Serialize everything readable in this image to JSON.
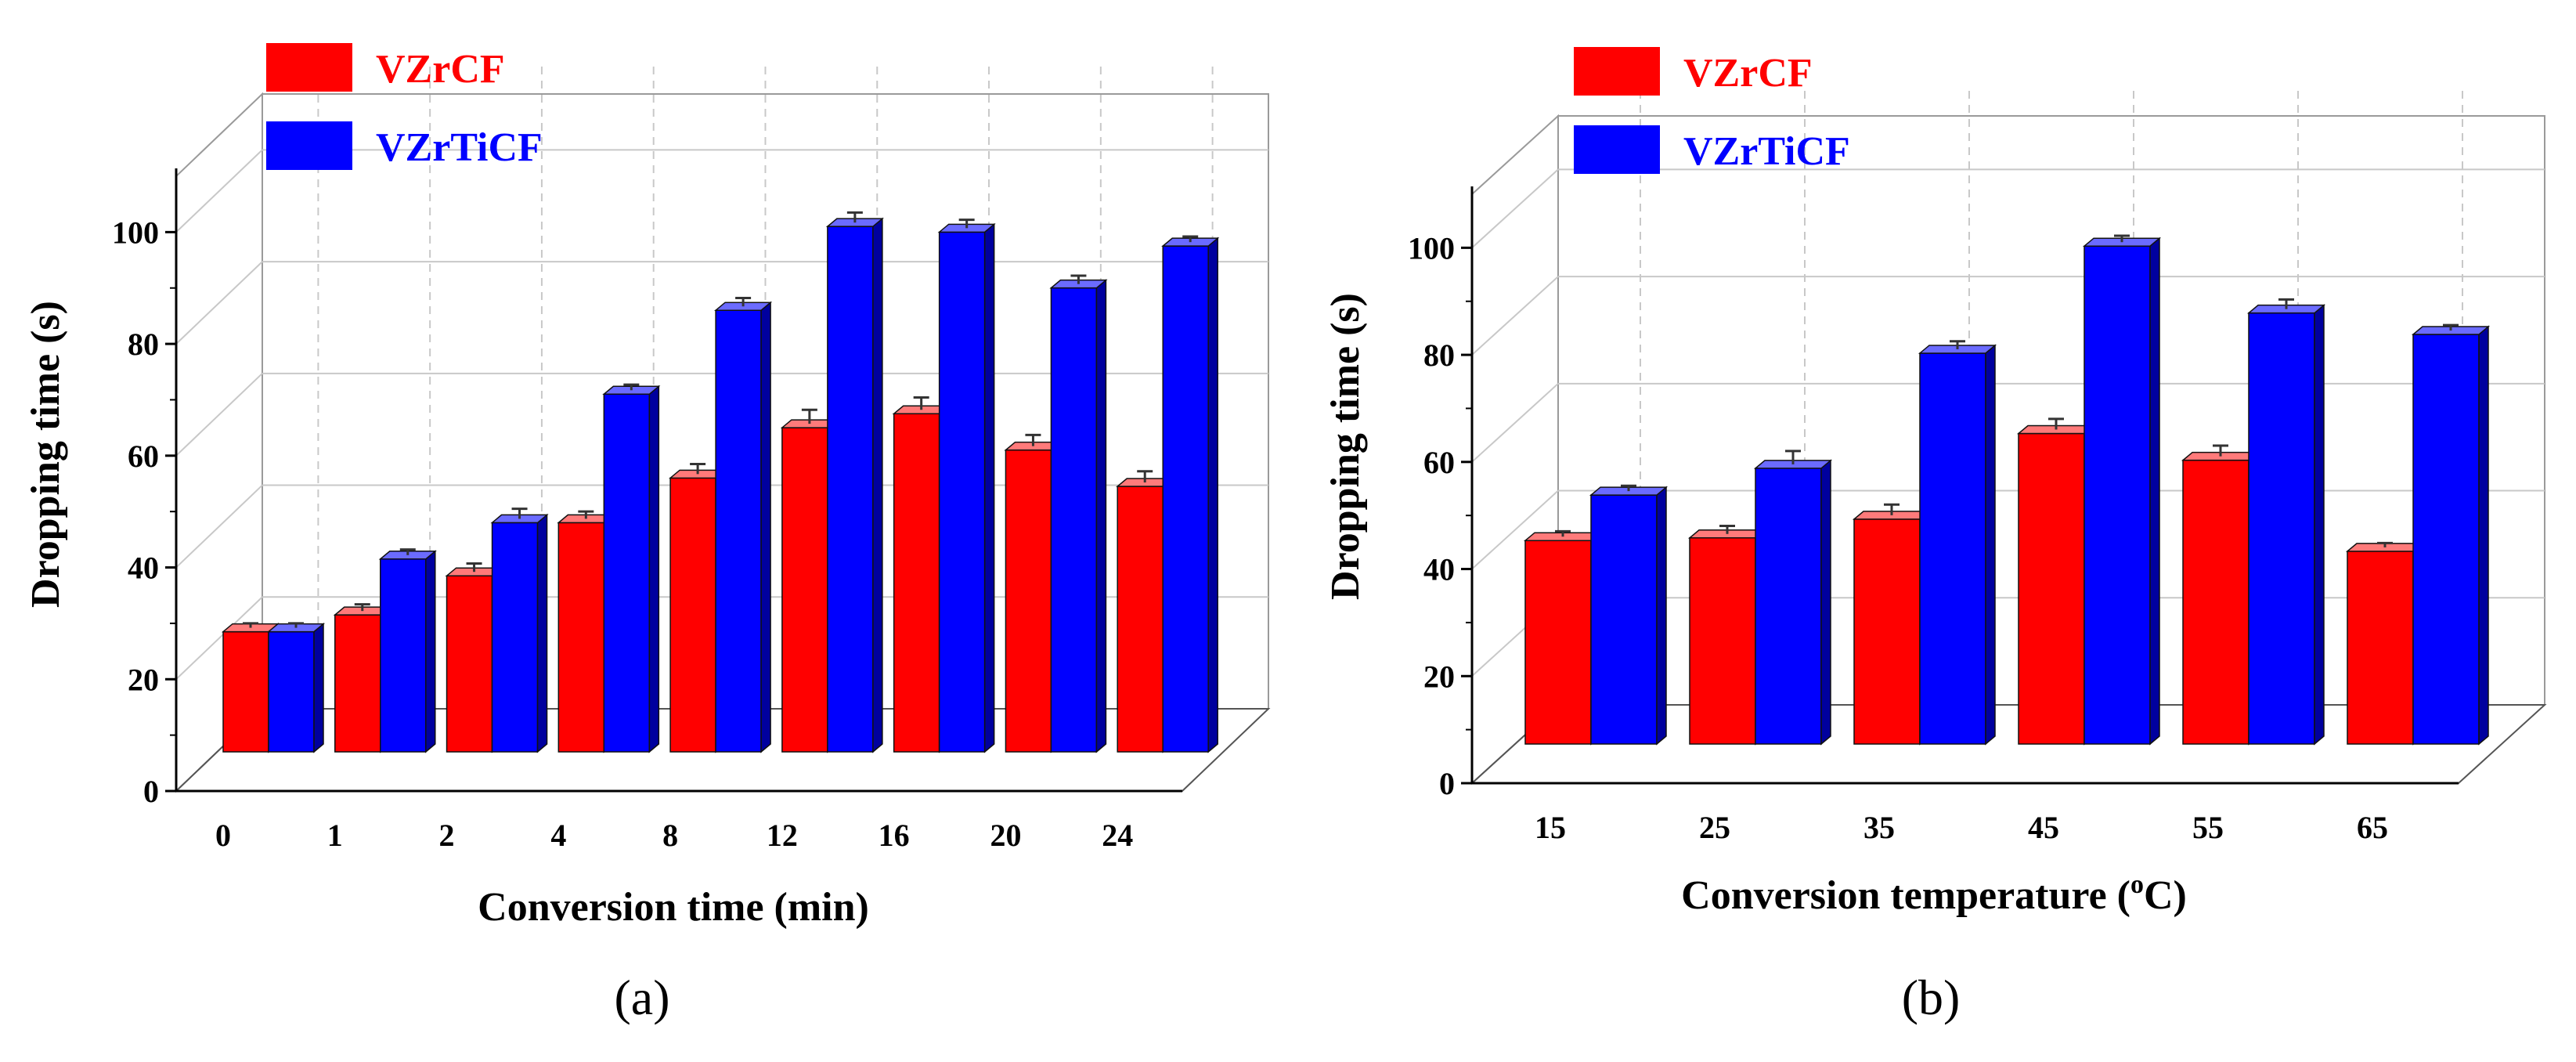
{
  "figure": {
    "panel_labels": [
      "(a)",
      "(b)"
    ]
  },
  "colors": {
    "series_front": [
      "#ff0000",
      "#0000ff"
    ],
    "series_side": [
      "#a30000",
      "#00009e"
    ],
    "series_top": [
      "#ff7a7a",
      "#6b6bff"
    ],
    "axis": "#000000",
    "grid": "#c8c8c8"
  },
  "chart_data": [
    {
      "type": "bar",
      "title": "",
      "xlabel": "Conversion time (min)",
      "ylabel": "Dropping time (s)",
      "ylim": [
        0,
        110
      ],
      "yticks": [
        0,
        20,
        40,
        60,
        80,
        100
      ],
      "grid": true,
      "legend": "top-left",
      "categories": [
        "0",
        "1",
        "2",
        "4",
        "8",
        "12",
        "16",
        "20",
        "24"
      ],
      "series": [
        {
          "name": "VZrCF",
          "values": [
            21.5,
            24.5,
            31.5,
            41,
            49,
            58,
            60.5,
            54,
            47.5
          ],
          "errors": [
            0.8,
            1.2,
            1.5,
            1.3,
            1.8,
            2.5,
            2.2,
            2,
            2
          ]
        },
        {
          "name": "VZrTiCF",
          "values": [
            21.5,
            34.5,
            41,
            64,
            79,
            94,
            93,
            83,
            90.5
          ],
          "errors": [
            0.8,
            1,
            1.8,
            1,
            1.5,
            1.8,
            1.5,
            1.5,
            1
          ]
        }
      ]
    },
    {
      "type": "bar",
      "title": "",
      "xlabel": "Conversion temperature (",
      "xlabel_sup": "o",
      "xlabel_end": "C)",
      "ylabel": "Dropping time (s)",
      "ylim": [
        0,
        110
      ],
      "yticks": [
        0,
        20,
        40,
        60,
        80,
        100
      ],
      "grid": true,
      "legend": "top-left",
      "categories": [
        "15",
        "25",
        "35",
        "45",
        "55",
        "65"
      ],
      "series": [
        {
          "name": "VZrCF",
          "values": [
            38,
            38.5,
            42,
            58,
            53,
            36
          ],
          "errors": [
            1,
            1.5,
            2,
            2,
            2,
            0.8
          ]
        },
        {
          "name": "VZrTiCF",
          "values": [
            46.5,
            51.5,
            73,
            93,
            80.5,
            76.5
          ],
          "errors": [
            1,
            2.5,
            1.5,
            1.2,
            1.8,
            1
          ]
        }
      ]
    }
  ]
}
